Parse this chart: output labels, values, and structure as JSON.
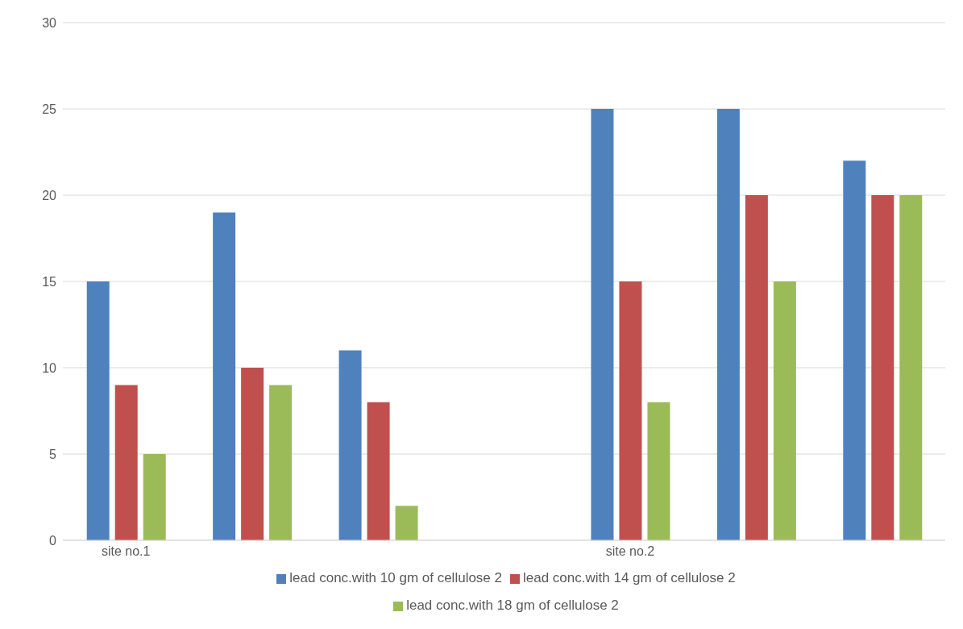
{
  "chart_data": {
    "type": "bar",
    "categories": [
      "site no.1",
      null,
      null,
      null,
      "site no.2",
      null,
      null
    ],
    "series": [
      {
        "name": "lead conc.with 10 gm of cellulose 2",
        "color": "#4f81bd",
        "values": [
          15,
          19,
          11,
          null,
          25,
          25,
          22
        ]
      },
      {
        "name": "lead conc.with 14 gm of cellulose 2",
        "color": "#c0504d",
        "values": [
          9,
          10,
          8,
          null,
          15,
          20,
          20
        ]
      },
      {
        "name": "lead conc.with 18 gm of cellulose 2",
        "color": "#9bbb59",
        "values": [
          5,
          9,
          2,
          null,
          8,
          15,
          20
        ]
      }
    ],
    "ylim": [
      0,
      30
    ],
    "yticks": [
      0,
      5,
      10,
      15,
      20,
      25,
      30
    ],
    "grid": "y",
    "legend": "bottom"
  }
}
